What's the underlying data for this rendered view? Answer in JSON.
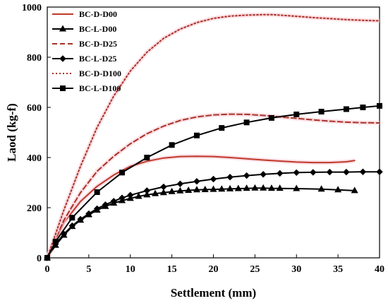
{
  "chart_data": {
    "type": "line",
    "title": "",
    "xlabel": "Settlement (mm)",
    "ylabel": "Laod (kg-f)",
    "xlim": [
      0,
      40
    ],
    "ylim": [
      0,
      1000
    ],
    "xticks": [
      0,
      5,
      10,
      15,
      20,
      25,
      30,
      35,
      40
    ],
    "yticks": [
      0,
      200,
      400,
      600,
      800,
      1000
    ],
    "grid": false,
    "legend_position": "top-left",
    "series": [
      {
        "name": "BC-D-D00",
        "color": "#c0392b",
        "line_style": "solid",
        "marker": "none",
        "x": [
          0,
          2,
          4,
          6,
          8,
          10,
          12,
          14,
          16,
          18,
          20,
          22,
          24,
          26,
          28,
          30,
          32,
          34,
          36,
          37
        ],
        "y": [
          0,
          140,
          225,
          285,
          330,
          365,
          385,
          398,
          404,
          405,
          404,
          400,
          395,
          390,
          386,
          382,
          380,
          380,
          383,
          388
        ]
      },
      {
        "name": "BC-L-D00",
        "color": "#000000",
        "line_style": "solid",
        "marker": "triangle",
        "x": [
          0,
          1,
          2,
          3,
          4,
          5,
          6,
          7,
          8,
          9,
          10,
          11,
          12,
          13,
          14,
          15,
          16,
          17,
          18,
          19,
          20,
          21,
          22,
          23,
          24,
          25,
          26,
          27,
          28,
          30,
          33,
          35,
          37
        ],
        "y": [
          0,
          50,
          90,
          125,
          150,
          172,
          190,
          205,
          218,
          228,
          237,
          245,
          251,
          256,
          260,
          264,
          267,
          269,
          271,
          272,
          273,
          274,
          275,
          276,
          277,
          278,
          278,
          277,
          277,
          276,
          274,
          271,
          268
        ]
      },
      {
        "name": "BC-D-D25",
        "color": "#a93226",
        "line_style": "dashed",
        "marker": "none",
        "x": [
          0,
          2,
          4,
          6,
          8,
          10,
          12,
          14,
          16,
          18,
          20,
          22,
          24,
          26,
          28,
          30,
          32,
          34,
          36,
          38,
          40
        ],
        "y": [
          0,
          150,
          260,
          345,
          405,
          455,
          495,
          525,
          548,
          562,
          570,
          573,
          572,
          568,
          562,
          556,
          550,
          545,
          541,
          539,
          538
        ]
      },
      {
        "name": "BC-L-D25",
        "color": "#000000",
        "line_style": "solid",
        "marker": "diamond",
        "x": [
          0,
          1,
          2,
          3,
          4,
          5,
          6,
          7,
          8,
          9,
          10,
          12,
          14,
          16,
          18,
          20,
          22,
          24,
          26,
          28,
          30,
          32,
          34,
          36,
          38,
          40
        ],
        "y": [
          0,
          55,
          95,
          128,
          154,
          176,
          196,
          212,
          226,
          239,
          250,
          268,
          283,
          295,
          305,
          314,
          322,
          328,
          333,
          337,
          340,
          341,
          342,
          342,
          343,
          343
        ]
      },
      {
        "name": "BC-D-D100",
        "color": "#a93226",
        "line_style": "dotted",
        "marker": "none",
        "x": [
          0,
          2,
          4,
          6,
          8,
          10,
          12,
          14,
          16,
          18,
          20,
          22,
          24,
          26,
          27,
          28,
          30,
          32,
          34,
          36,
          38,
          40
        ],
        "y": [
          0,
          190,
          365,
          520,
          645,
          745,
          820,
          875,
          912,
          938,
          955,
          964,
          968,
          970,
          970,
          968,
          963,
          958,
          954,
          950,
          947,
          945
        ]
      },
      {
        "name": "BC-L-D100",
        "color": "#000000",
        "line_style": "solid",
        "marker": "square",
        "x": [
          0,
          1,
          3,
          6,
          9,
          12,
          15,
          18,
          21,
          24,
          27,
          30,
          33,
          36,
          38,
          40
        ],
        "y": [
          0,
          65,
          160,
          262,
          340,
          400,
          450,
          488,
          518,
          540,
          558,
          572,
          583,
          593,
          600,
          606
        ]
      }
    ]
  }
}
